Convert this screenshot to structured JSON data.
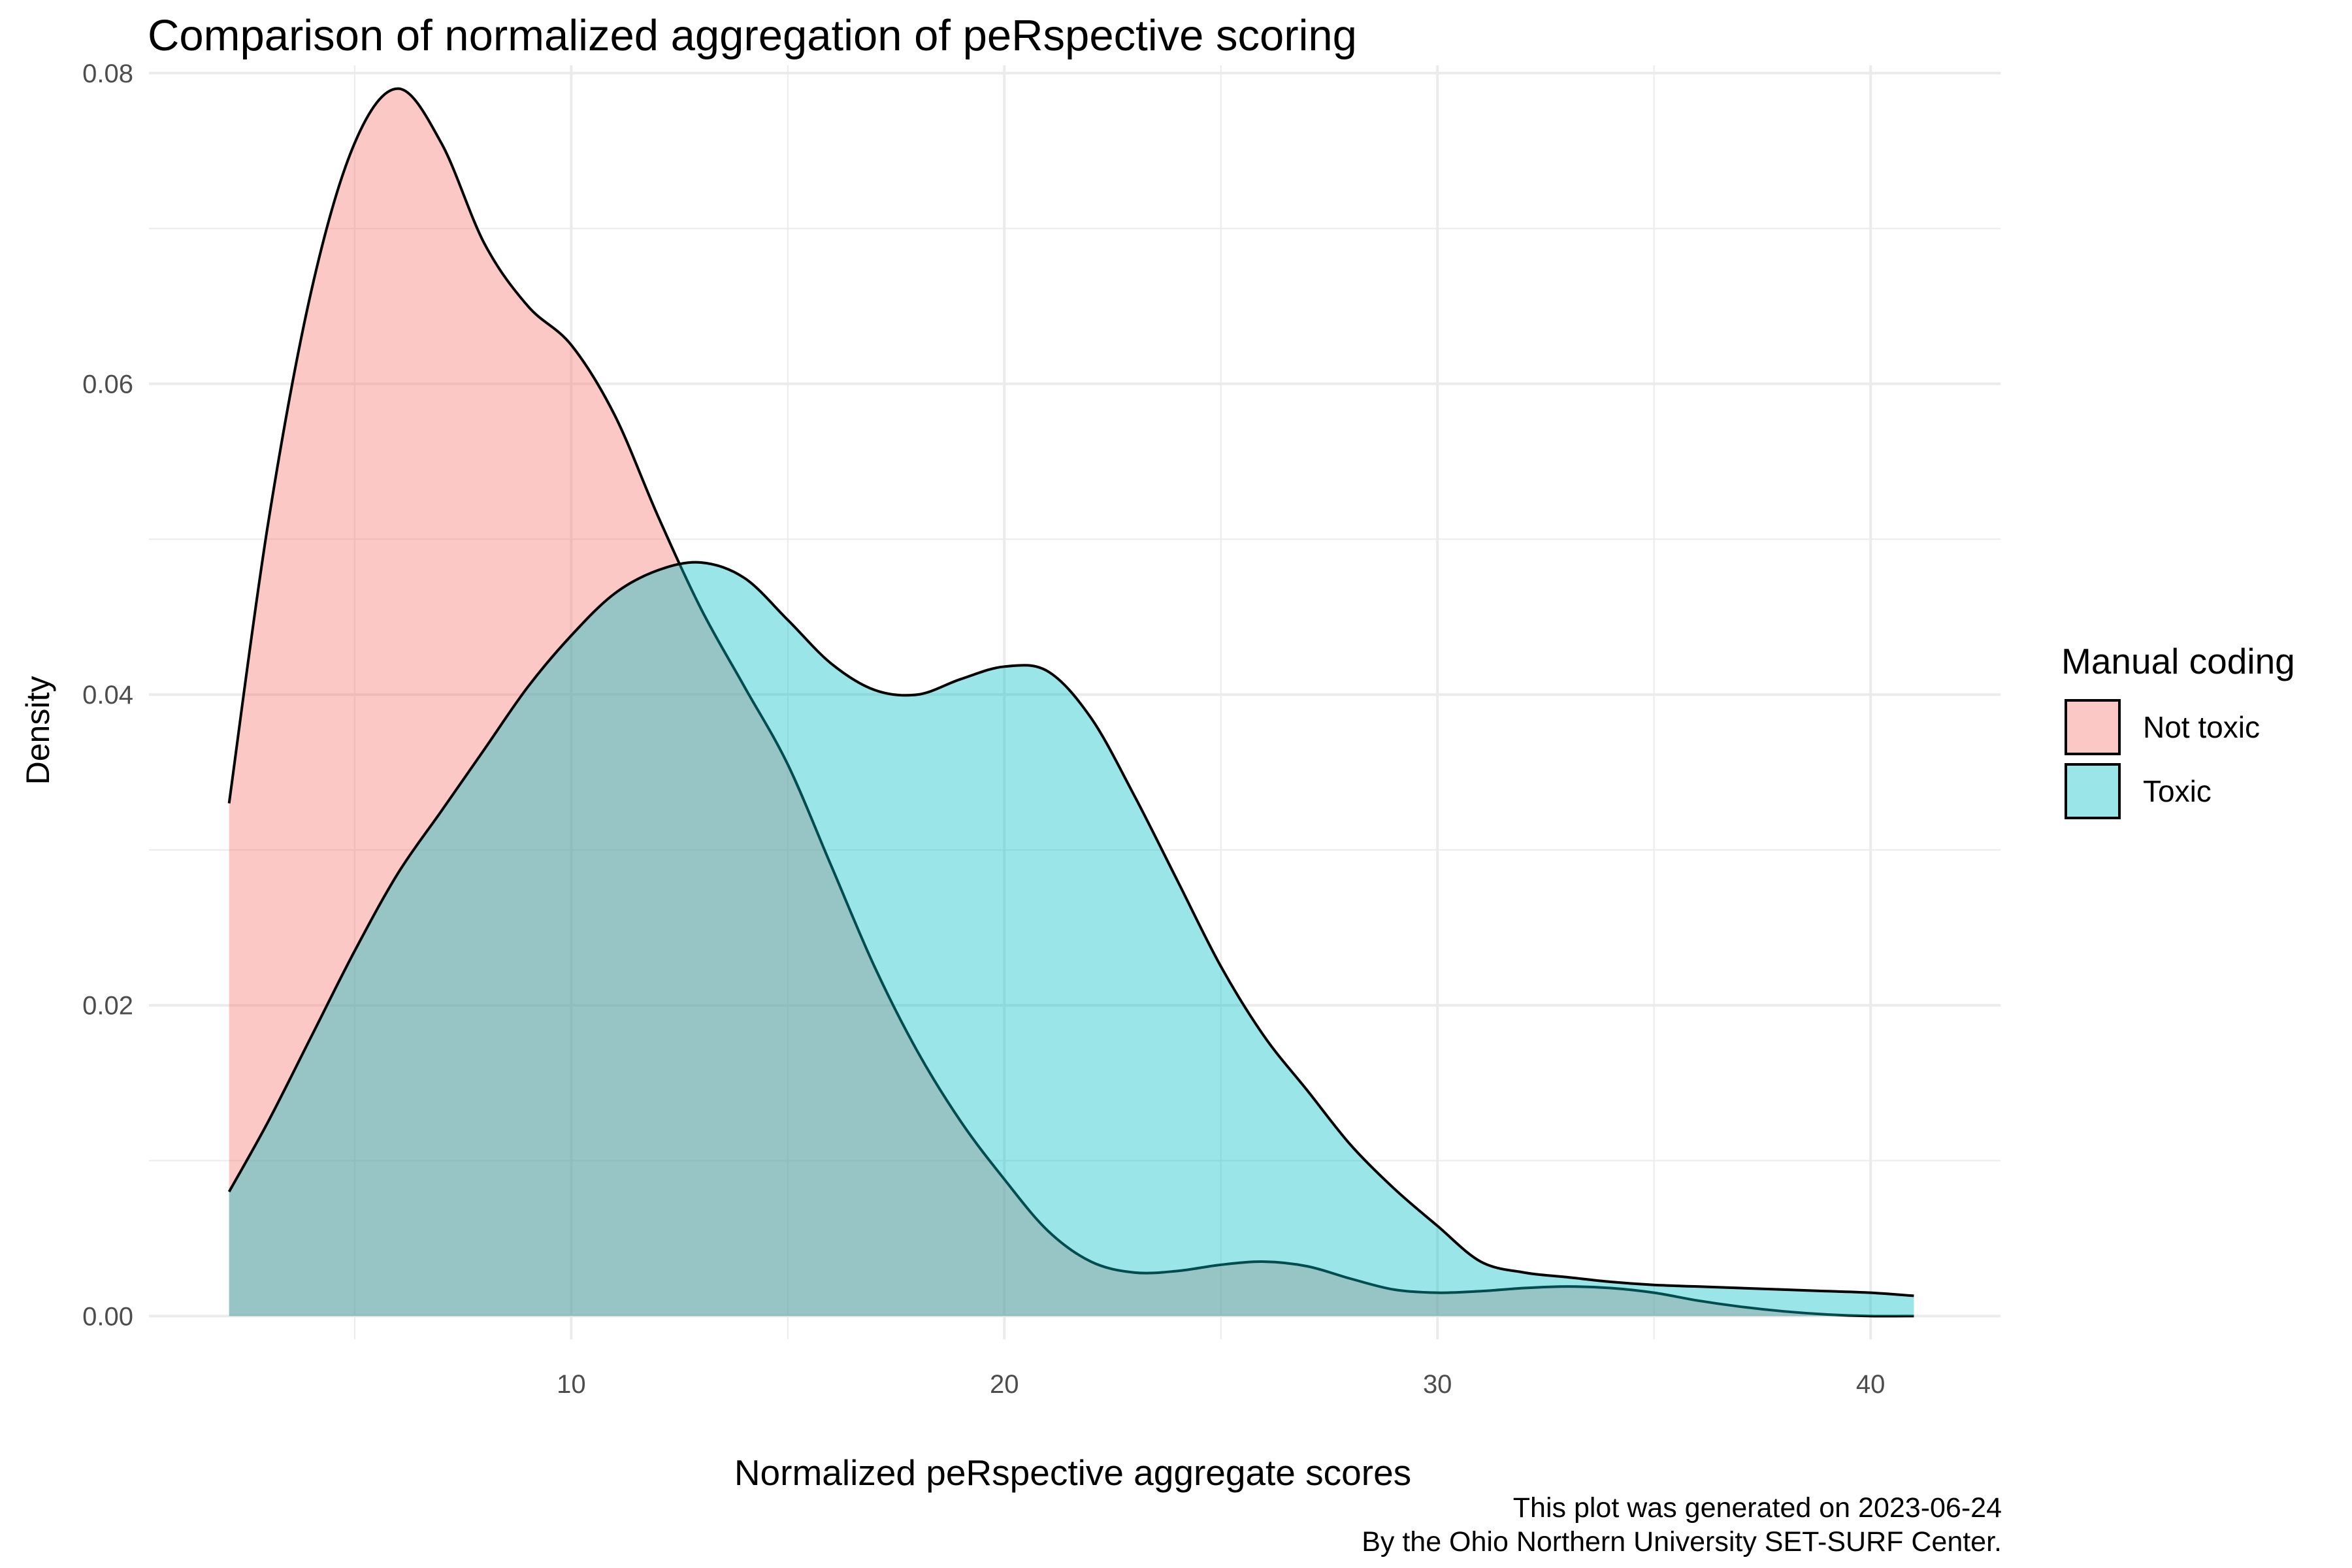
{
  "chart_data": {
    "type": "area",
    "title": "Comparison of normalized aggregation of peRspective scoring",
    "xlabel": "Normalized peRspective aggregate scores",
    "ylabel": "Density",
    "caption": [
      "This plot was generated on 2023-06-24",
      "By the Ohio Northern University SET-SURF Center."
    ],
    "xlim": [
      0.25,
      43
    ],
    "ylim": [
      -0.0015,
      0.0805
    ],
    "x_ticks": [
      10,
      20,
      30,
      40
    ],
    "x_tick_labels": [
      "10",
      "20",
      "30",
      "40"
    ],
    "y_ticks": [
      0.0,
      0.02,
      0.04,
      0.06,
      0.08
    ],
    "y_tick_labels": [
      "0.00",
      "0.02",
      "0.04",
      "0.06",
      "0.08"
    ],
    "grid": true,
    "legend": {
      "title": "Manual coding",
      "position": "right"
    },
    "series": [
      {
        "name": "Not toxic",
        "color": "#F8766D",
        "x": [
          2.1,
          3.0,
          4.0,
          5.0,
          6.0,
          7.0,
          8.0,
          9.0,
          10.0,
          11.0,
          12.0,
          13.0,
          14.0,
          15.0,
          16.0,
          17.0,
          18.0,
          19.0,
          20.0,
          21.0,
          22.0,
          23.0,
          24.0,
          25.0,
          26.0,
          27.0,
          28.0,
          29.0,
          30.0,
          31.0,
          32.0,
          33.0,
          34.0,
          35.0,
          36.0,
          37.0,
          38.0,
          39.0,
          40.0,
          41.0
        ],
        "values": [
          0.033,
          0.051,
          0.066,
          0.0755,
          0.079,
          0.0755,
          0.069,
          0.065,
          0.0625,
          0.058,
          0.0515,
          0.0455,
          0.0405,
          0.0355,
          0.029,
          0.0225,
          0.017,
          0.0125,
          0.0088,
          0.0055,
          0.0035,
          0.0028,
          0.0029,
          0.0033,
          0.0035,
          0.0032,
          0.0024,
          0.0017,
          0.0015,
          0.0016,
          0.0018,
          0.0019,
          0.0018,
          0.0015,
          0.001,
          0.0006,
          0.0003,
          0.0001,
          0.0,
          0.0
        ]
      },
      {
        "name": "Toxic",
        "color": "#00BFC4",
        "x": [
          2.1,
          3.0,
          4.0,
          5.0,
          6.0,
          7.0,
          8.0,
          9.0,
          10.0,
          11.0,
          12.0,
          13.0,
          14.0,
          15.0,
          16.0,
          17.0,
          18.0,
          19.0,
          20.0,
          21.0,
          22.0,
          23.0,
          24.0,
          25.0,
          26.0,
          27.0,
          28.0,
          29.0,
          30.0,
          31.0,
          32.0,
          33.0,
          34.0,
          35.0,
          36.0,
          37.0,
          38.0,
          39.0,
          40.0,
          41.0
        ],
        "values": [
          0.008,
          0.0125,
          0.018,
          0.0235,
          0.0285,
          0.0325,
          0.0365,
          0.0405,
          0.0438,
          0.0465,
          0.048,
          0.0485,
          0.0475,
          0.0448,
          0.042,
          0.0403,
          0.04,
          0.041,
          0.0418,
          0.0415,
          0.0385,
          0.0335,
          0.028,
          0.0225,
          0.018,
          0.0145,
          0.011,
          0.0082,
          0.0058,
          0.0035,
          0.0028,
          0.0025,
          0.0022,
          0.002,
          0.0019,
          0.0018,
          0.0017,
          0.0016,
          0.0015,
          0.0013
        ]
      }
    ]
  }
}
